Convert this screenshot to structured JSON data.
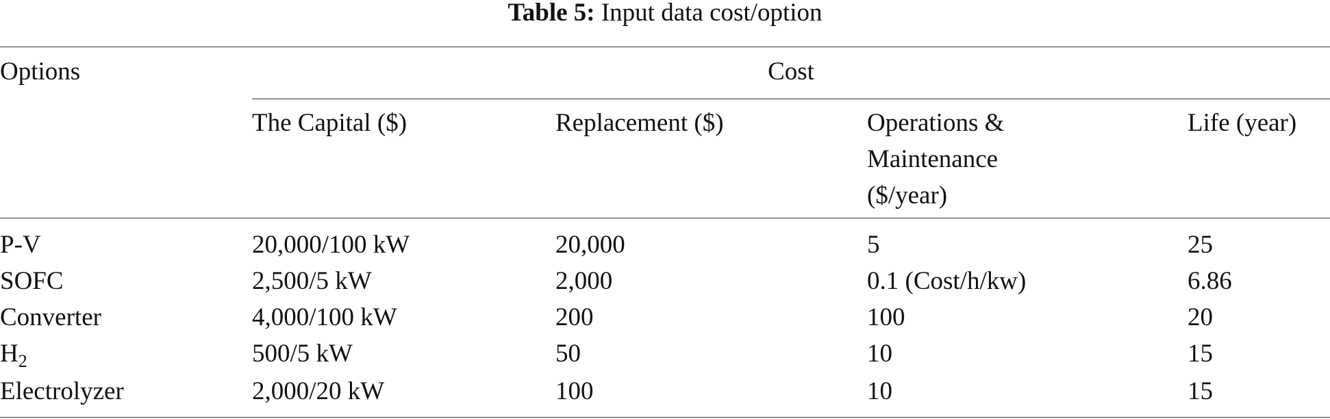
{
  "caption": {
    "label": "Table 5:",
    "title": "Input data cost/option"
  },
  "table": {
    "header": {
      "options": "Options",
      "group": "Cost",
      "columns": [
        "The Capital ($)",
        "Replacement ($)",
        "Operations & Maintenance ($/year)",
        "Life (year)"
      ]
    },
    "rows": [
      [
        {
          "text": "P-V"
        },
        "20,000/100 kW",
        "20,000",
        "5",
        "25"
      ],
      [
        {
          "text": "SOFC"
        },
        "2,500/5 kW",
        "2,000",
        "0.1 (Cost/h/kw)",
        "6.86"
      ],
      [
        {
          "text": "Converter"
        },
        "4,000/100 kW",
        "200",
        "100",
        "20"
      ],
      [
        {
          "text": "H",
          "sub": "2"
        },
        "500/5 kW",
        "50",
        "10",
        "15"
      ],
      [
        {
          "text": "Electrolyzer"
        },
        "2,000/20 kW",
        "100",
        "10",
        "15"
      ]
    ]
  }
}
